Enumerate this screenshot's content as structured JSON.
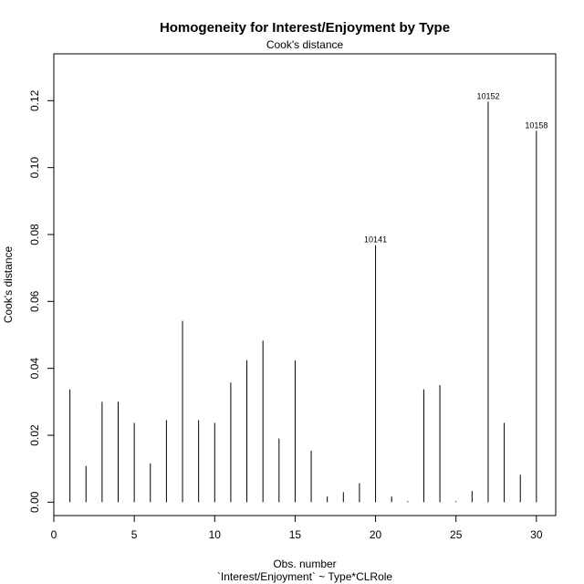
{
  "chart_data": {
    "type": "bar",
    "title": "Homogeneity for Interest/Enjoyment by Type",
    "subtitle": "Cook's distance",
    "xlabel": "Obs. number",
    "xlabel_sub": "`Interest/Enjoyment` ~ Type*CLRole",
    "ylabel": "Cook's distance",
    "xlim": [
      0,
      31.2
    ],
    "ylim": [
      -0.004,
      0.134
    ],
    "x_ticks": [
      0,
      5,
      10,
      15,
      20,
      25,
      30
    ],
    "y_ticks": [
      0.0,
      0.02,
      0.04,
      0.06,
      0.08,
      0.1,
      0.12
    ],
    "grid": false,
    "x": [
      1,
      2,
      3,
      4,
      5,
      6,
      7,
      8,
      9,
      10,
      11,
      12,
      13,
      14,
      15,
      16,
      17,
      18,
      19,
      20,
      21,
      22,
      23,
      24,
      25,
      26,
      27,
      28,
      29,
      30
    ],
    "values": [
      0.0337,
      0.0108,
      0.03,
      0.03,
      0.0237,
      0.0116,
      0.0245,
      0.0542,
      0.0245,
      0.0237,
      0.0358,
      0.0424,
      0.0483,
      0.019,
      0.0424,
      0.0154,
      0.0017,
      0.003,
      0.0057,
      0.0768,
      0.0017,
      0.0003,
      0.0337,
      0.035,
      0.0003,
      0.0033,
      0.1197,
      0.0237,
      0.0082,
      0.111
    ],
    "annotations": [
      {
        "x": 20,
        "y": 0.0768,
        "label": "10141"
      },
      {
        "x": 27,
        "y": 0.1197,
        "label": "10152"
      },
      {
        "x": 30,
        "y": 0.111,
        "label": "10158"
      }
    ]
  }
}
